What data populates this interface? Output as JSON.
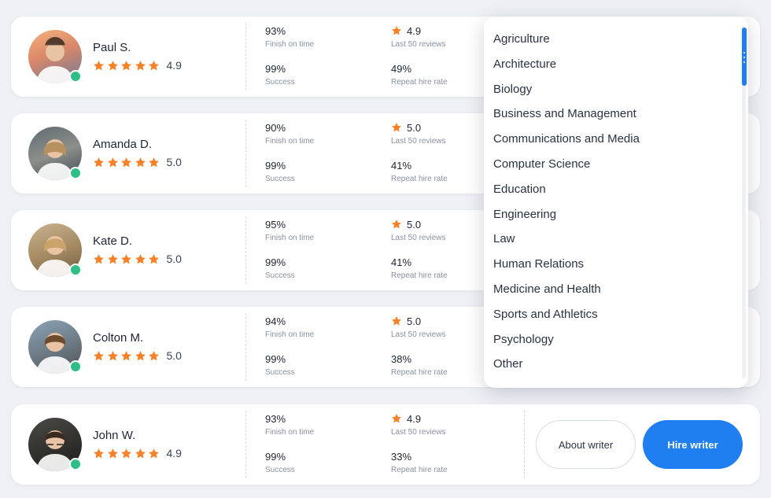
{
  "colors": {
    "accent": "#1f7ff0",
    "star": "#f5822a",
    "online": "#2fbf86"
  },
  "writers": [
    {
      "name": "Paul S.",
      "rating": "4.9",
      "finish": "93%",
      "finish_label": "Finish on time",
      "success": "99%",
      "success_label": "Success",
      "reviews": "4.9",
      "reviews_label": "Last 50 reviews",
      "repeat": "49%",
      "repeat_label": "Repeat hire rate"
    },
    {
      "name": "Amanda D.",
      "rating": "5.0",
      "finish": "90%",
      "finish_label": "Finish on time",
      "success": "99%",
      "success_label": "Success",
      "reviews": "5.0",
      "reviews_label": "Last 50 reviews",
      "repeat": "41%",
      "repeat_label": "Repeat hire rate"
    },
    {
      "name": "Kate D.",
      "rating": "5.0",
      "finish": "95%",
      "finish_label": "Finish on time",
      "success": "99%",
      "success_label": "Success",
      "reviews": "5.0",
      "reviews_label": "Last 50 reviews",
      "repeat": "41%",
      "repeat_label": "Repeat hire rate"
    },
    {
      "name": "Colton M.",
      "rating": "5.0",
      "finish": "94%",
      "finish_label": "Finish on time",
      "success": "99%",
      "success_label": "Success",
      "reviews": "5.0",
      "reviews_label": "Last 50 reviews",
      "repeat": "38%",
      "repeat_label": "Repeat hire rate"
    },
    {
      "name": "John W.",
      "rating": "4.9",
      "finish": "93%",
      "finish_label": "Finish on time",
      "success": "99%",
      "success_label": "Success",
      "reviews": "4.9",
      "reviews_label": "Last 50 reviews",
      "repeat": "33%",
      "repeat_label": "Repeat hire rate"
    }
  ],
  "buttons": {
    "about": "About writer",
    "hire": "Hire writer"
  },
  "dropdown": {
    "items": [
      "Agriculture",
      "Architecture",
      "Biology",
      "Business and Management",
      "Communications and Media",
      "Computer Science",
      "Education",
      "Engineering",
      "Law",
      "Human Relations",
      "Medicine and Health",
      "Sports and Athletics",
      "Psychology",
      "Other"
    ]
  }
}
